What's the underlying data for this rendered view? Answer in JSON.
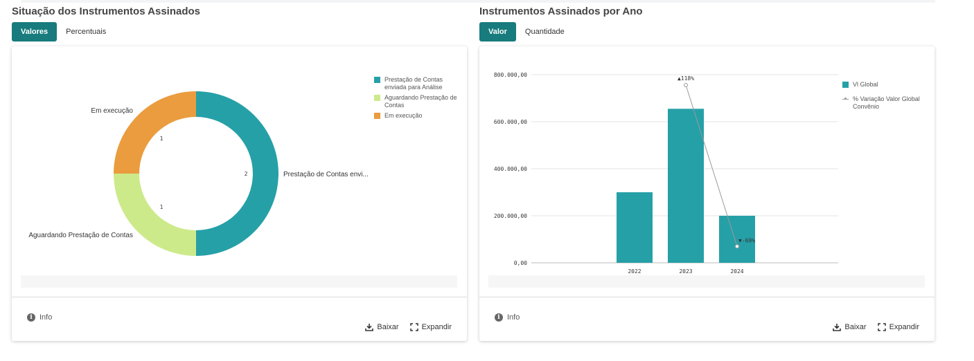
{
  "left": {
    "title": "Situação dos Instrumentos Assinados",
    "tabs": [
      {
        "label": "Valores",
        "active": true
      },
      {
        "label": "Percentuais",
        "active": false
      }
    ],
    "info_label": "Info",
    "download_label": "Baixar",
    "expand_label": "Expandir"
  },
  "right": {
    "title": "Instrumentos Assinados por Ano",
    "tabs": [
      {
        "label": "Valor",
        "active": true
      },
      {
        "label": "Quantidade",
        "active": false
      }
    ],
    "info_label": "Info",
    "download_label": "Baixar",
    "expand_label": "Expandir"
  },
  "chart_data": [
    {
      "type": "pie",
      "variant": "donut",
      "slices": [
        {
          "name": "Prestação de Contas enviada para Análise",
          "value": 2,
          "label": "Prestação de Contas envi...",
          "color": "#26a0a7"
        },
        {
          "name": "Aguardando Prestação de Contas",
          "value": 1,
          "label": "Aguardando Prestação de Contas",
          "color": "#cdea8b"
        },
        {
          "name": "Em execução",
          "value": 1,
          "label": "Em execução",
          "color": "#ea9c3e"
        }
      ],
      "legend_items": [
        "Prestação de Contas enviada para Análise",
        "Aguardando Prestação de Contas",
        "Em execução"
      ],
      "legend_placement": "top-right"
    },
    {
      "type": "bar",
      "categories": [
        "2022",
        "2023",
        "2024"
      ],
      "series": [
        {
          "name": "Vl Global",
          "type": "bar",
          "color": "#26a0a7",
          "values": [
            300000,
            655000,
            200000
          ]
        },
        {
          "name": "% Variação Valor Global Convênio",
          "type": "line",
          "color": "#999999",
          "points": [
            {
              "x": "2023",
              "value_pct": 118,
              "label": "▲118%"
            },
            {
              "x": "2024",
              "value_pct": -69,
              "label": "▼-69%"
            }
          ]
        }
      ],
      "ylim": [
        0,
        800000
      ],
      "yticks": [
        "0,00",
        "200.000,00",
        "400.000,00",
        "600.000,00",
        "800.000,00"
      ],
      "grid": true,
      "legend_placement": "top-right"
    }
  ]
}
